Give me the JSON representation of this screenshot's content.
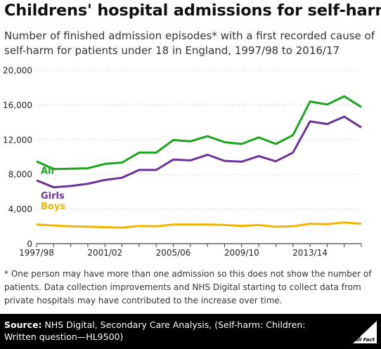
{
  "title": "Childrens' hospital admissions for self-harm",
  "subtitle": "Number of finished admission episodes* with a first recorded cause of self-harm for patients under 18 in England, 1997/98 to 2016/17",
  "footnote": "* One person may have more than one admission so this does not show the number of patients. Data collection improvements and NHS Digital starting to collect data from private hospitals may have contributed to the increase over time.",
  "source_label": "Source:",
  "source_text": " NHS Digital, Secondary Care Analysis, (Self-harm: Children: Written question—HL9500)",
  "logo_text": "Full Fact",
  "colors": {
    "all": "#1aa51a",
    "girls": "#6e3198",
    "boys": "#f1b500",
    "axis": "#444444",
    "grid": "#cccccc",
    "footer": "#000000"
  },
  "chart_data": {
    "type": "line",
    "x": [
      "1997/98",
      "1998/99",
      "1999/00",
      "2000/01",
      "2001/02",
      "2002/03",
      "2003/04",
      "2004/05",
      "2005/06",
      "2006/07",
      "2007/08",
      "2008/09",
      "2009/10",
      "2010/11",
      "2011/12",
      "2012/13",
      "2013/14",
      "2014/15",
      "2015/16",
      "2016/17"
    ],
    "x_tick_labels": [
      "1997/98",
      "2001/02",
      "2005/06",
      "2009/10",
      "2013/14"
    ],
    "x_tick_label_indices": [
      0,
      4,
      8,
      12,
      16
    ],
    "ylim": [
      0,
      20000
    ],
    "y_ticks": [
      0,
      4000,
      8000,
      12000,
      16000,
      20000
    ],
    "y_tick_labels": [
      "0",
      "4,000",
      "8,000",
      "12,000",
      "16,000",
      "20,000"
    ],
    "grid": true,
    "legend": "inline labels",
    "series": [
      {
        "name": "All",
        "key": "all",
        "values": [
          9500,
          8600,
          8650,
          8700,
          9200,
          9350,
          10500,
          10500,
          11950,
          11800,
          12400,
          11700,
          11500,
          12250,
          11500,
          12500,
          16400,
          16050,
          17000,
          15750
        ]
      },
      {
        "name": "Girls",
        "key": "girls",
        "values": [
          7300,
          6500,
          6650,
          6900,
          7350,
          7600,
          8500,
          8500,
          9700,
          9600,
          10250,
          9550,
          9450,
          10100,
          9500,
          10500,
          14100,
          13800,
          14650,
          13400
        ]
      },
      {
        "name": "Boys",
        "key": "boys",
        "values": [
          2200,
          2100,
          2000,
          1950,
          1900,
          1850,
          2050,
          2000,
          2200,
          2200,
          2200,
          2150,
          2050,
          2150,
          1950,
          2000,
          2300,
          2250,
          2450,
          2300
        ]
      }
    ]
  }
}
